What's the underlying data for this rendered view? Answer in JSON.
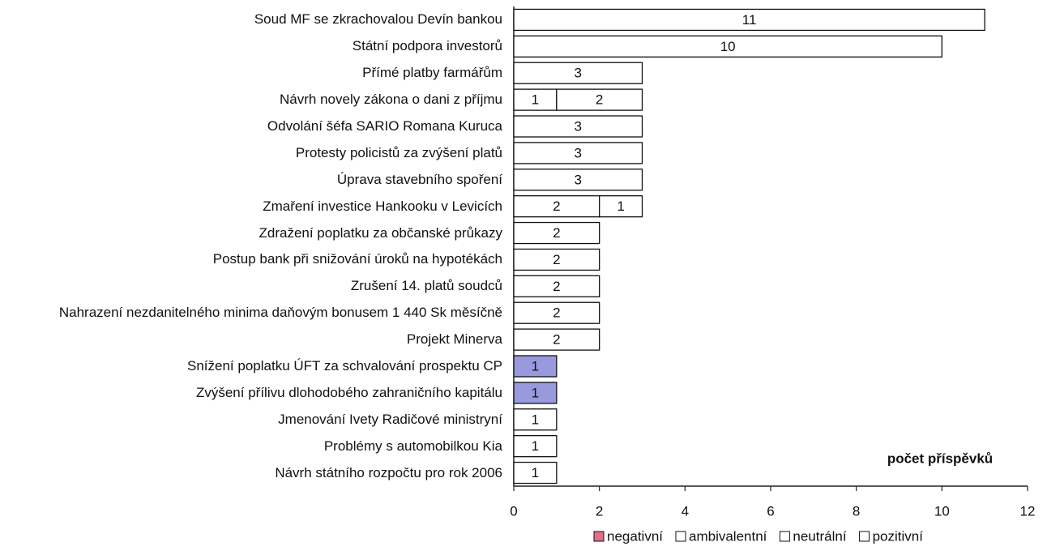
{
  "chart_data": {
    "type": "stacked_barh",
    "categories": [
      "Soud MF se zkrachovalou Devín bankou",
      "Státní podpora investorů",
      "Přímé platby farmářům",
      "Návrh novely zákona o dani z příjmu",
      "Odvolání šéfa SARIO Romana Kuruca",
      "Protesty policistů za zvýšení platů",
      "Úprava stavebního spoření",
      "Zmaření investice Hankooku v Levicích",
      "Zdražení poplatku za občanské průkazy",
      "Postup bank při snižování úroků na hypotékách",
      "Zrušení 14. platů soudců",
      "Nahrazení nezdanitelného minima daňovým bonusem 1 440 Sk měsíčně",
      "Projekt Minerva",
      "Snížení poplatku ÚFT za schvalování prospektu CP",
      "Zvýšení přílivu dlohodobého zahraničního kapitálu",
      "Jmenování Ivety Radičové ministryní",
      "Problémy s automobilkou Kia",
      "Návrh státního rozpočtu pro rok 2006"
    ],
    "series": [
      {
        "name": "negativní",
        "color": "#9999dd",
        "legend_color": "#e0708a",
        "values": [
          null,
          null,
          null,
          null,
          null,
          null,
          null,
          null,
          null,
          null,
          null,
          null,
          null,
          1,
          1,
          null,
          null,
          null
        ]
      },
      {
        "name": "ambivalentní",
        "color": "#ffffff",
        "values": [
          null,
          null,
          null,
          1,
          null,
          null,
          null,
          null,
          null,
          null,
          null,
          null,
          null,
          null,
          null,
          null,
          null,
          null
        ]
      },
      {
        "name": "neutrální",
        "color": "#ffffff",
        "values": [
          11,
          10,
          3,
          2,
          3,
          3,
          3,
          2,
          2,
          2,
          2,
          2,
          2,
          null,
          null,
          1,
          1,
          1
        ]
      },
      {
        "name": "pozitivní",
        "color": "#ffffff",
        "values": [
          null,
          null,
          null,
          null,
          null,
          null,
          null,
          1,
          null,
          null,
          null,
          null,
          null,
          null,
          null,
          null,
          null,
          null
        ]
      }
    ],
    "xlabel": "počet příspěvků",
    "xlim": [
      0,
      12
    ],
    "xticks": [
      0,
      2,
      4,
      6,
      8,
      10,
      12
    ],
    "legend": "bottom"
  }
}
